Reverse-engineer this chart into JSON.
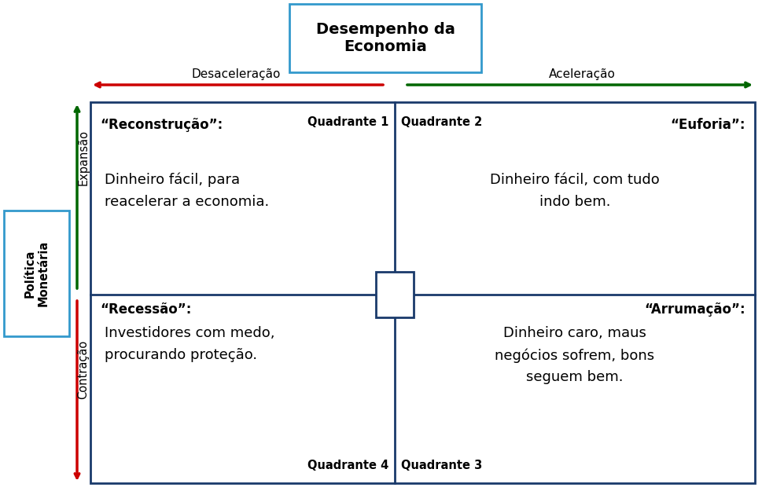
{
  "title": "Desempenho da\nEconomia",
  "left_label": "Desaceleração",
  "right_label": "Aceleração",
  "y_axis_label": "Política\nMonetária",
  "top_label": "Expansão",
  "bottom_label": "Contração",
  "q1_title": "Quadrante 1",
  "q2_title": "Quadrante 2",
  "q3_title": "Quadrante 3",
  "q4_title": "Quadrante 4",
  "q1_heading": "“Reconstrução”:",
  "q2_heading": "“Euforia”:",
  "q3_heading": "“Arrumação”:",
  "q4_heading": "“Recessão”:",
  "q1_text": "Dinheiro fácil, para\nreacelerar a economia.",
  "q2_text": "Dinheiro fácil, com tudo\nindo bem.",
  "q3_text": "Dinheiro caro, maus\nnegócios sofrem, bons\nseguem bem.",
  "q4_text": "Investidores com medo,\nprocurando proteção.",
  "border_color": "#1a3a6b",
  "arrow_red": "#cc0000",
  "arrow_green": "#006600",
  "title_box_color": "#3399cc",
  "pm_box_color": "#3399cc",
  "bg_color": "#ffffff",
  "text_color": "#000000"
}
